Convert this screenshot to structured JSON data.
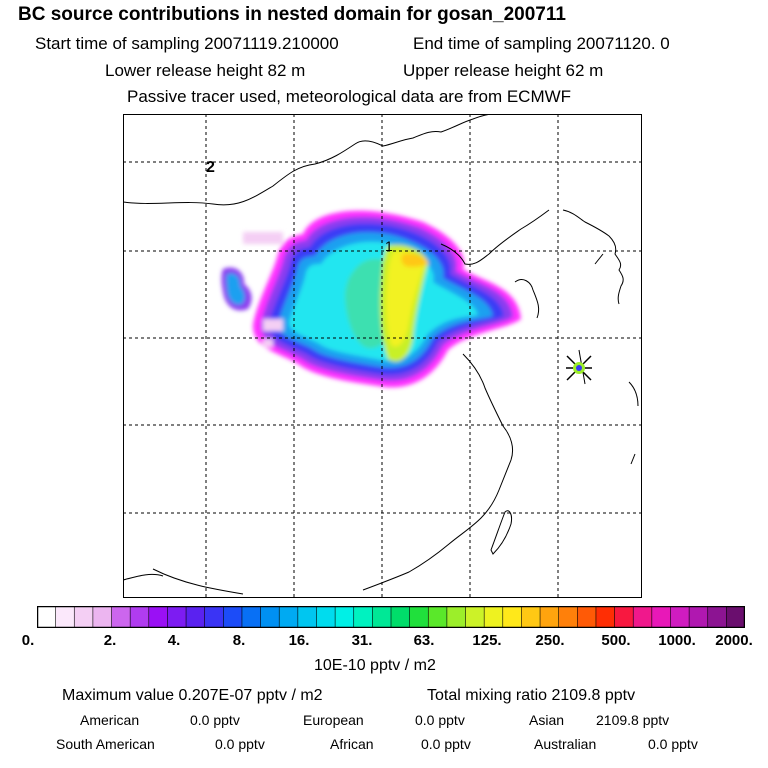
{
  "header": {
    "title": "BC  source contributions in nested domain for gosan_200711",
    "start_label": "Start time of sampling 20071119.210000",
    "end_label": "End time of sampling 20071120.     0",
    "lower_label": "Lower release height   82 m",
    "upper_label": "Upper release height   62 m",
    "tracer_note": "Passive tracer used, meteorological data are from ECMWF"
  },
  "map": {
    "markers": [
      {
        "id": "release-point-2",
        "label": "2"
      },
      {
        "id": "release-point-1",
        "label": "1"
      }
    ],
    "receptor": {
      "name": "gosan",
      "symbol": "star-cross"
    }
  },
  "colorbar": {
    "ticks": [
      "0.",
      "2.",
      "4.",
      "8.",
      "16.",
      "31.",
      "63.",
      "125.",
      "250.",
      "500.",
      "1000.",
      "2000."
    ],
    "unit": "10E-10 pptv / m2",
    "colors": [
      "#ffffff",
      "#fbe8fb",
      "#f4cff4",
      "#ecb5f0",
      "#cc66ee",
      "#b03cf0",
      "#9a10f5",
      "#7d1cf2",
      "#5a22f0",
      "#3a34f5",
      "#1c4cf8",
      "#0870f5",
      "#0090f2",
      "#00aaf2",
      "#00c6f0",
      "#00dcee",
      "#00f0e6",
      "#00f2c0",
      "#00e896",
      "#00dd6a",
      "#20e03c",
      "#5ae82a",
      "#9cee2a",
      "#ccf228",
      "#eef220",
      "#ffe81a",
      "#ffc814",
      "#ffa40e",
      "#ff800a",
      "#ff5a06",
      "#ff2e04",
      "#f81840",
      "#f0188c",
      "#e818b8",
      "#d01cc0",
      "#b018b0",
      "#8c1492",
      "#6a0e6e"
    ]
  },
  "summary": {
    "max_label": "Maximum value  0.207E-07 pptv / m2",
    "total_label": "Total mixing ratio    2109.8 pptv",
    "regions": [
      {
        "name": "American",
        "value": "0.0 pptv"
      },
      {
        "name": "European",
        "value": "0.0 pptv"
      },
      {
        "name": "Asian",
        "value": "2109.8 pptv"
      },
      {
        "name": "South American",
        "value": "0.0 pptv"
      },
      {
        "name": "African",
        "value": "0.0 pptv"
      },
      {
        "name": "Australian",
        "value": "0.0 pptv"
      }
    ]
  }
}
